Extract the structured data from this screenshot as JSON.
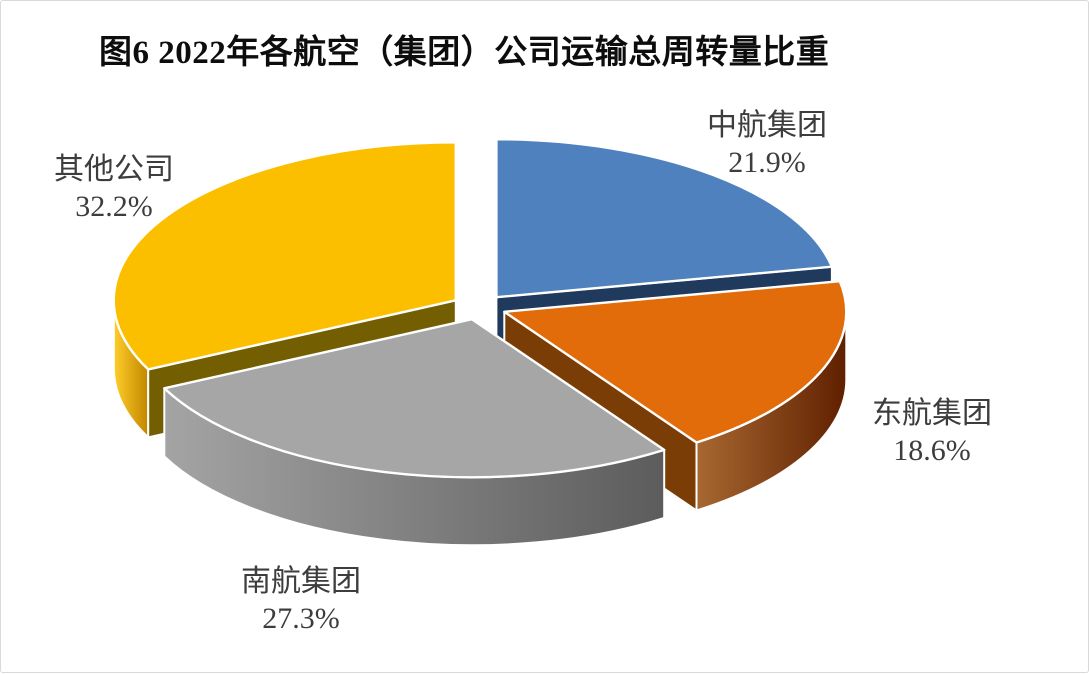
{
  "title": "图6 2022年各航空（集团）公司运输总周转量比重",
  "chart_data": {
    "type": "pie",
    "style": "3d-exploded-pie",
    "title": "图6 2022年各航空（集团）公司运输总周转量比重",
    "unit": "%",
    "start_angle_deg": 0,
    "direction": "clockwise",
    "legend": "none",
    "labels_position": "outside",
    "background_color": "#ffffff",
    "label_text_color": "#3d3d3d",
    "slices": [
      {
        "label": "中航集团",
        "value": 21.9,
        "pct_label": "21.9%",
        "color": "#4E81BD",
        "side_color": "#1F3A5C",
        "radial_color": "#1F3A5C"
      },
      {
        "label": "东航集团",
        "value": 18.6,
        "pct_label": "18.6%",
        "color": "#E26B0A",
        "side_color": "#7E3E07",
        "radial_color": "#7B3D06"
      },
      {
        "label": "南航集团",
        "value": 27.3,
        "pct_label": "27.3%",
        "color": "#A6A6A6",
        "side_color": "#7A7A7A",
        "radial_color": "#6E6E6E"
      },
      {
        "label": "其他公司",
        "value": 32.2,
        "pct_label": "32.2%",
        "color": "#FBBF00",
        "side_color": "#E0A400",
        "radial_color": "#745E02"
      }
    ]
  }
}
